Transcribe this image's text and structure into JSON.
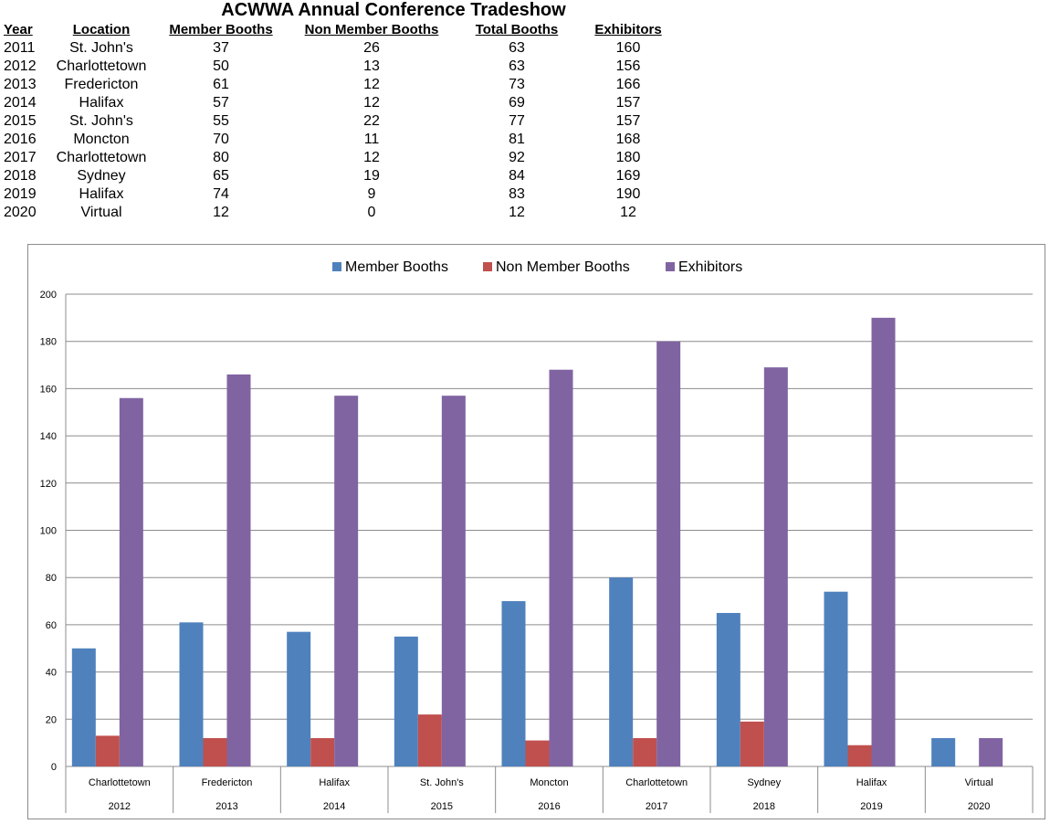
{
  "table": {
    "title": "ACWWA Annual Conference Tradeshow",
    "headers": [
      "Year",
      "Location",
      "Member Booths",
      "Non Member Booths",
      "Total Booths",
      "Exhibitors"
    ],
    "rows": [
      [
        "2011",
        "St. John's",
        "37",
        "26",
        "63",
        "160"
      ],
      [
        "2012",
        "Charlottetown",
        "50",
        "13",
        "63",
        "156"
      ],
      [
        "2013",
        "Fredericton",
        "61",
        "12",
        "73",
        "166"
      ],
      [
        "2014",
        "Halifax",
        "57",
        "12",
        "69",
        "157"
      ],
      [
        "2015",
        "St. John's",
        "55",
        "22",
        "77",
        "157"
      ],
      [
        "2016",
        "Moncton",
        "70",
        "11",
        "81",
        "168"
      ],
      [
        "2017",
        "Charlottetown",
        "80",
        "12",
        "92",
        "180"
      ],
      [
        "2018",
        "Sydney",
        "65",
        "19",
        "84",
        "169"
      ],
      [
        "2019",
        "Halifax",
        "74",
        "9",
        "83",
        "190"
      ],
      [
        "2020",
        "Virtual",
        "12",
        "0",
        "12",
        "12"
      ]
    ]
  },
  "chart_data": {
    "type": "bar",
    "title": "",
    "xlabel": "",
    "ylabel": "",
    "categories": [
      "Charlottetown",
      "Fredericton",
      "Halifax",
      "St. John's",
      "Moncton",
      "Charlottetown",
      "Sydney",
      "Halifax",
      "Virtual"
    ],
    "category_groups": [
      "2012",
      "2013",
      "2014",
      "2015",
      "2016",
      "2017",
      "2018",
      "2019",
      "2020"
    ],
    "series": [
      {
        "name": "Member Booths",
        "values": [
          50,
          61,
          57,
          55,
          70,
          80,
          65,
          74,
          12
        ],
        "color": "#4f81bd"
      },
      {
        "name": "Non Member Booths",
        "values": [
          13,
          12,
          12,
          22,
          11,
          12,
          19,
          9,
          0
        ],
        "color": "#c0504d"
      },
      {
        "name": "Exhibitors",
        "values": [
          156,
          166,
          157,
          157,
          168,
          180,
          169,
          190,
          12
        ],
        "color": "#8064a2"
      }
    ],
    "ylim": [
      0,
      200
    ],
    "yticks": [
      0,
      20,
      40,
      60,
      80,
      100,
      120,
      140,
      160,
      180,
      200
    ],
    "grid": true,
    "legend": "top-center"
  }
}
